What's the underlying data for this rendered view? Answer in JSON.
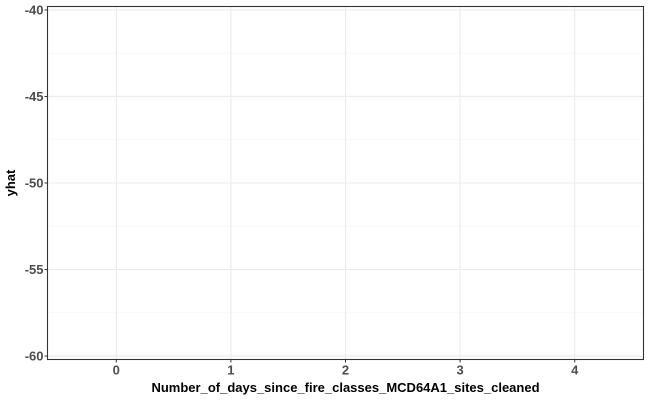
{
  "chart_data": {
    "type": "line",
    "title": "",
    "xlabel": "Number_of_days_since_fire_classes_MCD64A1_sites_cleaned",
    "ylabel": "yhat",
    "x_ticks": [
      0,
      1,
      2,
      3,
      4
    ],
    "x_tick_labels": [
      "0",
      "1",
      "2",
      "3",
      "4"
    ],
    "xlim": [
      -0.6,
      4.6
    ],
    "y_ticks": [
      -60,
      -55,
      -50,
      -45,
      -40
    ],
    "y_tick_labels": [
      "-60",
      "-55",
      "-50",
      "-45",
      "-40"
    ],
    "ylim": [
      -60.2,
      -39.8
    ],
    "series": [],
    "grid": true,
    "legend": "none"
  },
  "colors": {
    "panel_background": "#ffffff",
    "panel_border": "#333333",
    "major_grid": "#ebebeb",
    "minor_grid": "#f5f5f5",
    "tick_label": "#4d4d4d",
    "axis_title": "#000000"
  }
}
